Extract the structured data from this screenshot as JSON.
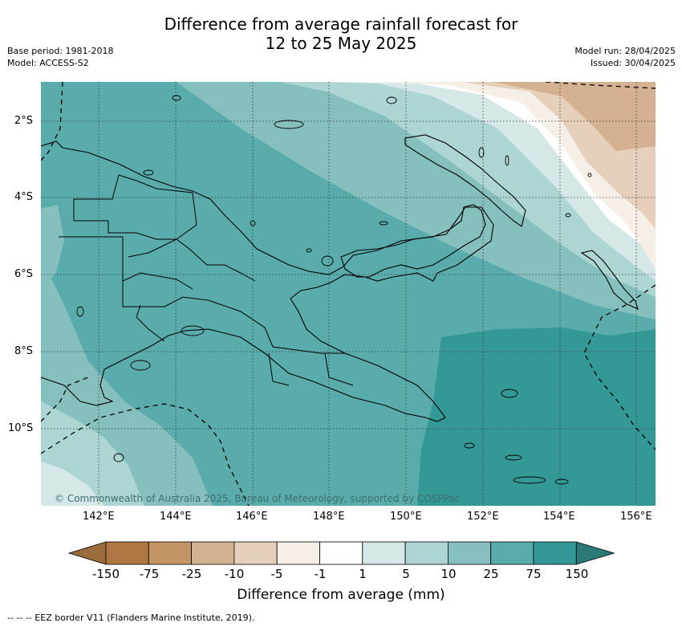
{
  "header": {
    "title_line1": "Difference from average rainfall forecast for",
    "title_line2": "12 to 25 May 2025",
    "base_period": "Base period: 1981-2018",
    "model": "Model: ACCESS-S2",
    "model_run": "Model run: 28/04/2025",
    "issued": "Issued: 30/04/2025"
  },
  "map": {
    "lat_labels": [
      "2°S",
      "4°S",
      "6°S",
      "8°S",
      "10°S"
    ],
    "lon_labels": [
      "142°E",
      "144°E",
      "146°E",
      "148°E",
      "150°E",
      "152°E",
      "154°E",
      "156°E"
    ],
    "copyright": "© Commonwealth of Australia 2025, Bureau of Meteorology, supported by COSPPac"
  },
  "colorbar": {
    "title": "Difference from average (mm)",
    "tick_labels": [
      "-150",
      "-75",
      "-25",
      "-10",
      "-5",
      "-1",
      "1",
      "5",
      "10",
      "25",
      "75",
      "150"
    ],
    "colors": [
      "#9c6b3c",
      "#ae7743",
      "#c29466",
      "#d4b190",
      "#e6cfbb",
      "#f5efe8",
      "#ffffff",
      "#d5e8e7",
      "#add5d4",
      "#85c0bf",
      "#5aacac",
      "#339896",
      "#2c7a78"
    ]
  },
  "footer": {
    "eez_note": "--  --  -- EEZ border V11 (Flanders Marine Institute, 2019)."
  }
}
